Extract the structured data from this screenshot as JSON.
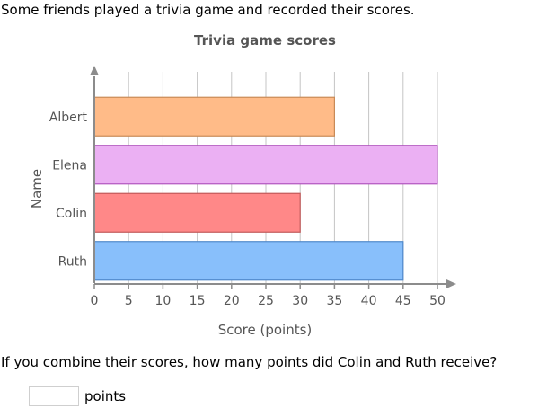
{
  "prompt": "Some friends played a trivia game and recorded their scores.",
  "question": "If you combine their scores, how many points did Colin and Ruth receive?",
  "answer": {
    "value": "",
    "unit": "points"
  },
  "chart_data": {
    "type": "bar",
    "orientation": "horizontal",
    "title": "Trivia game scores",
    "xlabel": "Score (points)",
    "ylabel": "Name",
    "categories": [
      "Albert",
      "Elena",
      "Colin",
      "Ruth"
    ],
    "values": [
      35,
      50,
      30,
      45
    ],
    "xlim": [
      0,
      50
    ],
    "xticks": [
      0,
      5,
      10,
      15,
      20,
      25,
      30,
      35,
      40,
      45,
      50
    ],
    "grid": true,
    "colors": [
      {
        "fill": "#FFBB88",
        "stroke": "#C98A57"
      },
      {
        "fill": "#EBB0F3",
        "stroke": "#B256BF"
      },
      {
        "fill": "#FF8888",
        "stroke": "#C25A5A"
      },
      {
        "fill": "#88BFFB",
        "stroke": "#4F88CB"
      }
    ],
    "axis_color": "#8C8C8C",
    "grid_color": "#C4C4C4"
  }
}
